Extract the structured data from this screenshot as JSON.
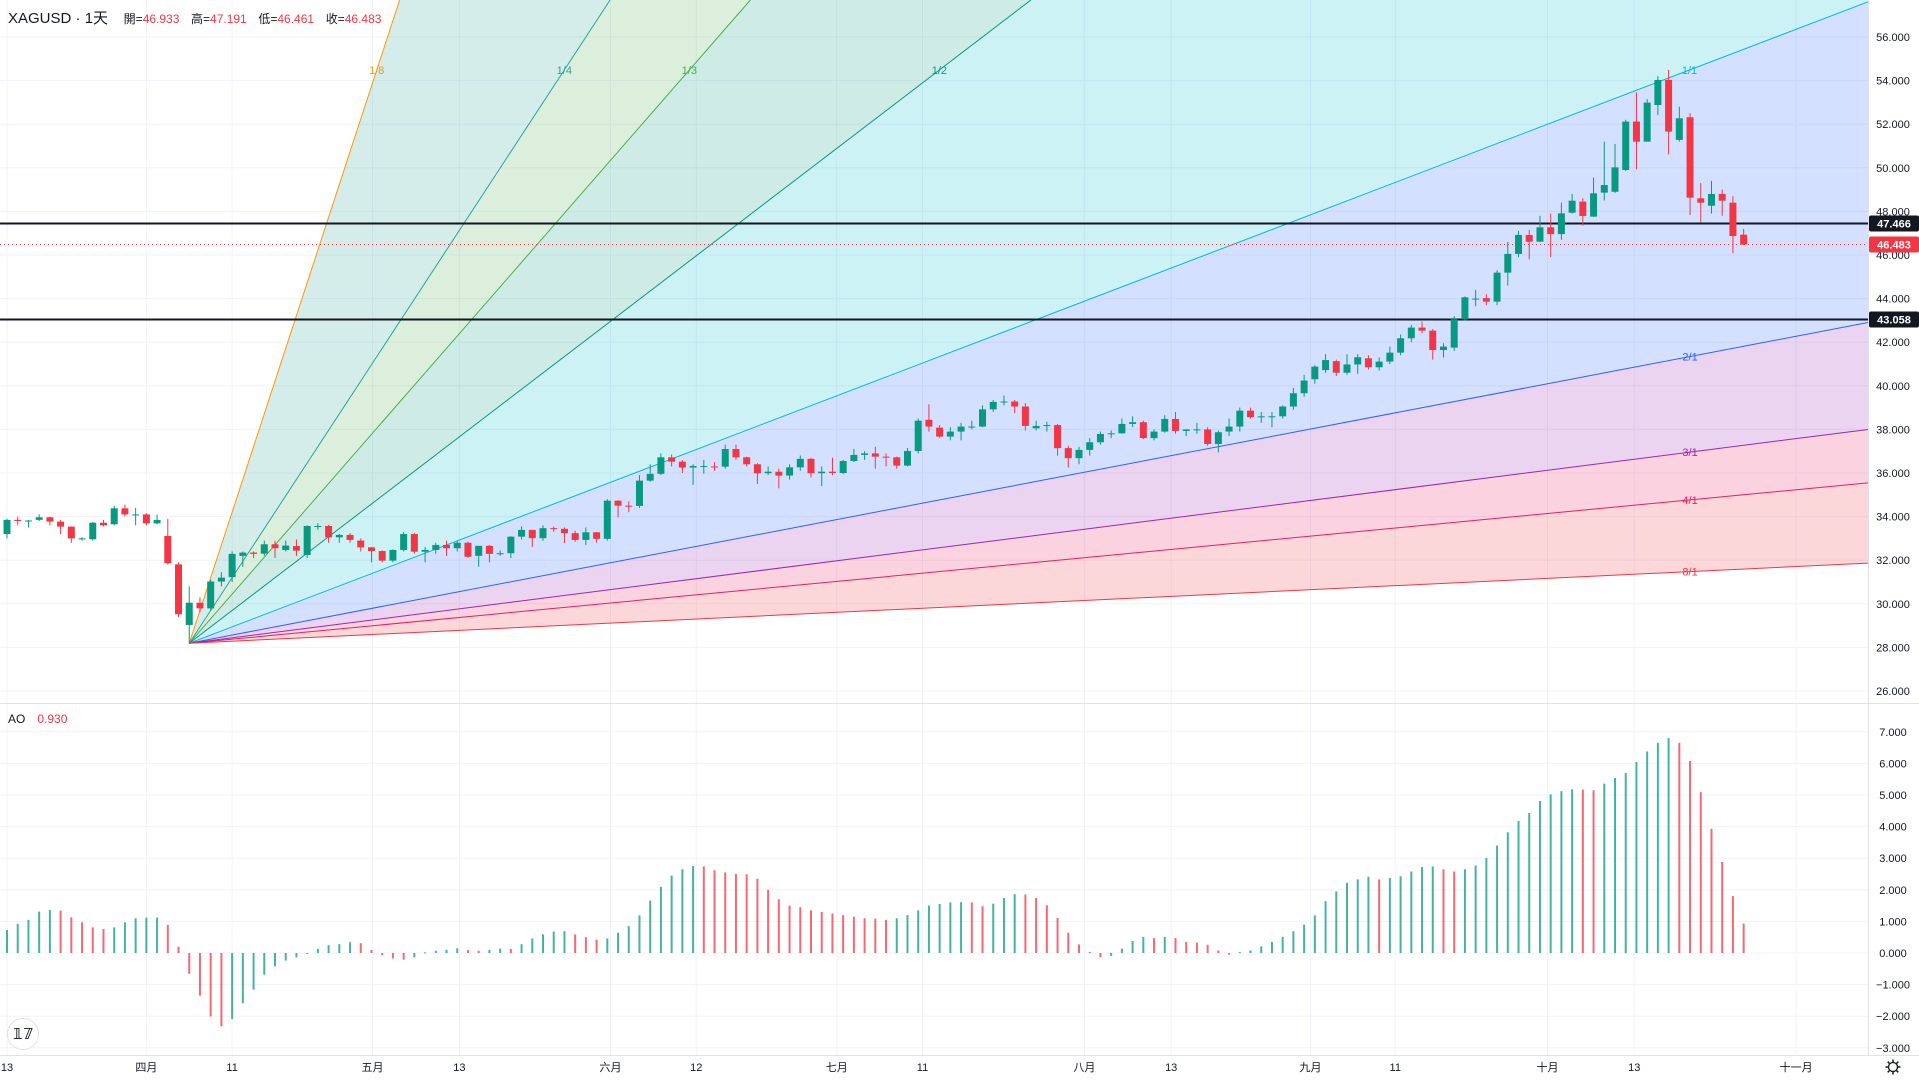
{
  "header": {
    "symbol": "XAGUSD",
    "sep": "·",
    "interval": "1天",
    "open_label": "開=",
    "open": "46.933",
    "high_label": "高=",
    "high": "47.191",
    "low_label": "低=",
    "low": "46.461",
    "close_label": "收=",
    "close": "46.483"
  },
  "indicator": {
    "name": "AO",
    "value": "0.930"
  },
  "logo_text": "TV",
  "colors": {
    "up": "#089981",
    "down": "#f23645",
    "hline": "#131722",
    "last_price": "#f23645",
    "grid": "#f0f3fa",
    "axis_text": "#131722"
  },
  "chart_data": {
    "type": "candlestick",
    "title": "XAGUSD · 1天",
    "price_axis": {
      "range": [
        26,
        56
      ],
      "ticks": [
        "56.000",
        "54.000",
        "52.000",
        "50.000",
        "48.000",
        "46.000",
        "44.000",
        "42.000",
        "40.000",
        "38.000",
        "36.000",
        "34.000",
        "32.000",
        "30.000",
        "28.000",
        "26.000"
      ]
    },
    "time_labels": [
      {
        "label": "13",
        "bar": 0
      },
      {
        "label": "四月",
        "bar": 13
      },
      {
        "label": "11",
        "bar": 21
      },
      {
        "label": "五月",
        "bar": 34.1
      },
      {
        "label": "13",
        "bar": 42.2
      },
      {
        "label": "六月",
        "bar": 56.3
      },
      {
        "label": "12",
        "bar": 64.3
      },
      {
        "label": "七月",
        "bar": 77.4
      },
      {
        "label": "11",
        "bar": 85.4
      },
      {
        "label": "八月",
        "bar": 100.5
      },
      {
        "label": "13",
        "bar": 108.6
      },
      {
        "label": "九月",
        "bar": 121.6
      },
      {
        "label": "11",
        "bar": 129.5
      },
      {
        "label": "十月",
        "bar": 143.7
      },
      {
        "label": "13",
        "bar": 151.8
      },
      {
        "label": "十一月",
        "bar": 166.9
      }
    ],
    "ohlc": [
      [
        33.2,
        33.9,
        33.0,
        33.85
      ],
      [
        33.85,
        34.0,
        33.6,
        33.8
      ],
      [
        33.8,
        33.85,
        33.5,
        33.82
      ],
      [
        33.85,
        34.1,
        33.8,
        33.97
      ],
      [
        33.97,
        34.0,
        33.6,
        33.77
      ],
      [
        33.77,
        33.85,
        33.2,
        33.54
      ],
      [
        33.54,
        33.55,
        32.8,
        33.0
      ],
      [
        33.0,
        33.05,
        32.9,
        33.0
      ],
      [
        32.96,
        33.75,
        32.9,
        33.72
      ],
      [
        33.72,
        33.85,
        33.55,
        33.6
      ],
      [
        33.65,
        34.5,
        33.6,
        34.38
      ],
      [
        34.38,
        34.55,
        34.0,
        34.1
      ],
      [
        34.1,
        34.4,
        33.6,
        34.1
      ],
      [
        34.1,
        34.15,
        33.6,
        33.69
      ],
      [
        33.69,
        34.1,
        33.65,
        33.85
      ],
      [
        33.11,
        33.9,
        31.8,
        31.86
      ],
      [
        31.81,
        31.9,
        29.4,
        29.52
      ],
      [
        29.03,
        30.8,
        28.19,
        30.05
      ],
      [
        30.05,
        30.3,
        29.6,
        29.79
      ],
      [
        29.79,
        31.1,
        29.7,
        31.02
      ],
      [
        31.02,
        31.45,
        30.8,
        31.2
      ],
      [
        31.22,
        32.4,
        31.0,
        32.29
      ],
      [
        32.2,
        32.4,
        31.7,
        32.35
      ],
      [
        32.35,
        32.4,
        32.1,
        32.29
      ],
      [
        32.3,
        32.9,
        32.2,
        32.73
      ],
      [
        32.73,
        32.9,
        32.1,
        32.55
      ],
      [
        32.47,
        32.9,
        32.4,
        32.67
      ],
      [
        32.65,
        32.95,
        32.2,
        32.44
      ],
      [
        32.24,
        33.6,
        32.1,
        33.57
      ],
      [
        33.57,
        33.7,
        33.4,
        33.57
      ],
      [
        33.57,
        33.62,
        32.8,
        33.05
      ],
      [
        33.05,
        33.2,
        32.8,
        33.16
      ],
      [
        33.16,
        33.25,
        32.8,
        32.93
      ],
      [
        32.9,
        33.0,
        32.4,
        32.59
      ],
      [
        32.59,
        32.6,
        31.9,
        32.42
      ],
      [
        32.42,
        32.45,
        31.9,
        31.98
      ],
      [
        31.98,
        32.5,
        31.9,
        32.47
      ],
      [
        32.47,
        33.3,
        32.4,
        33.2
      ],
      [
        33.2,
        33.25,
        32.3,
        32.39
      ],
      [
        32.39,
        32.6,
        31.9,
        32.47
      ],
      [
        32.47,
        32.8,
        32.3,
        32.7
      ],
      [
        32.7,
        32.9,
        32.2,
        32.55
      ],
      [
        32.55,
        32.9,
        32.4,
        32.8
      ],
      [
        32.8,
        32.85,
        32.1,
        32.16
      ],
      [
        32.2,
        32.5,
        31.7,
        32.66
      ],
      [
        32.66,
        32.7,
        31.9,
        32.29
      ],
      [
        32.3,
        32.45,
        32.2,
        32.32
      ],
      [
        32.32,
        33.1,
        32.1,
        33.08
      ],
      [
        33.08,
        33.55,
        32.95,
        33.39
      ],
      [
        33.39,
        33.4,
        32.6,
        33.01
      ],
      [
        33.01,
        33.6,
        32.9,
        33.47
      ],
      [
        33.47,
        33.55,
        33.3,
        33.44
      ],
      [
        33.44,
        33.5,
        32.78,
        33.24
      ],
      [
        33.24,
        33.35,
        32.85,
        32.93
      ],
      [
        32.93,
        33.5,
        32.7,
        33.28
      ],
      [
        33.28,
        33.3,
        32.8,
        32.98
      ],
      [
        32.98,
        34.8,
        32.9,
        34.73
      ],
      [
        34.73,
        34.75,
        33.97,
        34.5
      ],
      [
        34.5,
        34.7,
        34.2,
        34.49
      ],
      [
        34.49,
        35.9,
        34.4,
        35.65
      ],
      [
        35.65,
        36.4,
        35.6,
        35.96
      ],
      [
        35.96,
        36.9,
        35.9,
        36.72
      ],
      [
        36.72,
        36.85,
        36.3,
        36.52
      ],
      [
        36.52,
        36.6,
        36.0,
        36.25
      ],
      [
        36.25,
        36.4,
        35.45,
        36.32
      ],
      [
        36.32,
        36.6,
        35.97,
        36.32
      ],
      [
        36.3,
        36.5,
        36.1,
        36.29
      ],
      [
        36.29,
        37.3,
        36.2,
        37.1
      ],
      [
        37.1,
        37.3,
        36.6,
        36.72
      ],
      [
        36.72,
        36.75,
        36.3,
        36.4
      ],
      [
        36.4,
        36.45,
        35.5,
        35.99
      ],
      [
        35.99,
        36.3,
        35.9,
        36.06
      ],
      [
        36.06,
        36.2,
        35.3,
        35.88
      ],
      [
        35.88,
        36.4,
        35.7,
        36.26
      ],
      [
        36.26,
        36.8,
        36.1,
        36.65
      ],
      [
        36.65,
        36.7,
        35.8,
        35.99
      ],
      [
        35.99,
        36.3,
        35.4,
        36.06
      ],
      [
        36.06,
        36.7,
        35.9,
        36.0
      ],
      [
        36.0,
        36.6,
        35.95,
        36.55
      ],
      [
        36.55,
        37.1,
        36.5,
        36.83
      ],
      [
        36.83,
        37.0,
        36.6,
        36.9
      ],
      [
        36.9,
        37.2,
        36.2,
        36.75
      ],
      [
        36.75,
        36.9,
        36.3,
        36.72
      ],
      [
        36.72,
        36.75,
        36.2,
        36.34
      ],
      [
        36.34,
        37.15,
        36.3,
        37.01
      ],
      [
        37.01,
        38.5,
        36.9,
        38.4
      ],
      [
        38.44,
        39.15,
        37.9,
        38.13
      ],
      [
        38.08,
        38.2,
        37.6,
        37.67
      ],
      [
        37.67,
        38.1,
        37.5,
        37.9
      ],
      [
        37.9,
        38.3,
        37.5,
        38.13
      ],
      [
        38.13,
        38.4,
        38.0,
        38.13
      ],
      [
        38.13,
        39.1,
        38.1,
        38.92
      ],
      [
        38.92,
        39.35,
        38.8,
        39.26
      ],
      [
        39.26,
        39.55,
        39.1,
        39.28
      ],
      [
        39.28,
        39.35,
        38.75,
        39.05
      ],
      [
        39.05,
        39.2,
        37.95,
        38.16
      ],
      [
        38.05,
        38.4,
        37.95,
        38.16
      ],
      [
        38.16,
        38.35,
        37.9,
        38.2
      ],
      [
        38.2,
        38.25,
        36.8,
        37.14
      ],
      [
        37.14,
        37.25,
        36.25,
        36.68
      ],
      [
        36.68,
        37.2,
        36.4,
        37.06
      ],
      [
        37.06,
        37.6,
        36.8,
        37.41
      ],
      [
        37.41,
        37.9,
        37.3,
        37.79
      ],
      [
        37.79,
        37.95,
        37.6,
        37.82
      ],
      [
        37.82,
        38.5,
        37.8,
        38.25
      ],
      [
        38.25,
        38.6,
        38.1,
        38.33
      ],
      [
        38.33,
        38.4,
        37.55,
        37.6
      ],
      [
        37.6,
        38.0,
        37.5,
        37.9
      ],
      [
        37.9,
        38.65,
        37.85,
        38.48
      ],
      [
        38.48,
        38.8,
        37.8,
        37.93
      ],
      [
        37.93,
        38.0,
        37.7,
        38.0
      ],
      [
        38.0,
        38.3,
        37.8,
        38.0
      ],
      [
        38.0,
        38.1,
        37.25,
        37.33
      ],
      [
        37.33,
        37.95,
        36.95,
        37.87
      ],
      [
        37.9,
        38.5,
        37.7,
        38.13
      ],
      [
        38.13,
        39.0,
        37.9,
        38.86
      ],
      [
        38.86,
        39.0,
        38.5,
        38.56
      ],
      [
        38.56,
        38.8,
        38.3,
        38.6
      ],
      [
        38.6,
        38.8,
        38.1,
        38.6
      ],
      [
        38.6,
        39.1,
        38.5,
        39.05
      ],
      [
        39.05,
        39.9,
        38.9,
        39.66
      ],
      [
        39.66,
        40.5,
        39.5,
        40.24
      ],
      [
        40.3,
        40.95,
        40.1,
        40.88
      ],
      [
        40.72,
        41.45,
        40.6,
        41.18
      ],
      [
        41.13,
        41.2,
        40.45,
        40.6
      ],
      [
        40.6,
        41.45,
        40.5,
        40.98
      ],
      [
        40.98,
        41.45,
        40.55,
        41.31
      ],
      [
        41.26,
        41.4,
        40.75,
        40.85
      ],
      [
        40.85,
        41.3,
        40.7,
        41.11
      ],
      [
        41.11,
        41.8,
        41.0,
        41.52
      ],
      [
        41.52,
        42.35,
        41.4,
        42.18
      ],
      [
        42.18,
        42.8,
        42.0,
        42.67
      ],
      [
        42.67,
        42.95,
        42.4,
        42.53
      ],
      [
        42.53,
        42.6,
        41.2,
        41.64
      ],
      [
        41.64,
        41.95,
        41.3,
        41.8
      ],
      [
        41.75,
        43.2,
        41.6,
        43.05
      ],
      [
        43.05,
        44.1,
        43.0,
        44.06
      ],
      [
        44.0,
        44.4,
        43.65,
        44.0
      ],
      [
        44.02,
        44.2,
        43.7,
        43.86
      ],
      [
        43.86,
        45.3,
        43.7,
        45.19
      ],
      [
        45.19,
        46.6,
        44.6,
        46.05
      ],
      [
        46.05,
        47.1,
        45.9,
        46.92
      ],
      [
        46.92,
        47.15,
        45.8,
        46.61
      ],
      [
        46.61,
        47.8,
        46.6,
        47.27
      ],
      [
        47.27,
        47.9,
        45.9,
        46.96
      ],
      [
        46.96,
        48.4,
        46.7,
        47.91
      ],
      [
        47.94,
        48.8,
        47.9,
        48.49
      ],
      [
        48.45,
        48.6,
        47.35,
        47.79
      ],
      [
        47.76,
        49.55,
        47.75,
        48.83
      ],
      [
        48.86,
        51.2,
        48.5,
        49.21
      ],
      [
        48.9,
        51.1,
        48.85,
        50.02
      ],
      [
        49.9,
        52.2,
        49.85,
        52.12
      ],
      [
        52.12,
        53.46,
        49.93,
        51.2
      ],
      [
        51.2,
        53.15,
        51.2,
        52.99
      ],
      [
        52.88,
        54.2,
        52.42,
        54.03
      ],
      [
        54.03,
        54.49,
        50.62,
        51.66
      ],
      [
        51.28,
        52.8,
        51.2,
        52.27
      ],
      [
        52.32,
        52.5,
        47.83,
        48.63
      ],
      [
        48.6,
        49.3,
        47.5,
        48.4
      ],
      [
        48.26,
        49.4,
        47.9,
        48.8
      ],
      [
        48.8,
        49.0,
        47.8,
        48.49
      ],
      [
        48.4,
        48.7,
        46.08,
        46.87
      ],
      [
        46.933,
        47.191,
        46.461,
        46.483
      ]
    ],
    "horizontal_lines": [
      {
        "price": 47.466,
        "label": "47.466"
      },
      {
        "price": 43.058,
        "label": "43.058"
      }
    ],
    "last_price": {
      "price": 46.483,
      "label": "46.483"
    },
    "gann_fan": {
      "origin": {
        "bar": 17,
        "price": 28.19
      },
      "unit_slope_per_bar": 0.1879,
      "lines": [
        {
          "label": "1/8",
          "mult": 8,
          "color": "#ff9800"
        },
        {
          "label": "1/4",
          "mult": 4,
          "color": "#26a69a"
        },
        {
          "label": "1/3",
          "mult": 3,
          "color": "#4caf50"
        },
        {
          "label": "1/2",
          "mult": 2,
          "color": "#089981"
        },
        {
          "label": "1/1",
          "mult": 1,
          "color": "#00bcd4"
        },
        {
          "label": "2/1",
          "mult": 0.5,
          "color": "#2962ff"
        },
        {
          "label": "3/1",
          "mult": 0.3333,
          "color": "#9c27b0"
        },
        {
          "label": "4/1",
          "mult": 0.25,
          "color": "#e91e63"
        },
        {
          "label": "8/1",
          "mult": 0.125,
          "color": "#f23645"
        }
      ]
    },
    "ao": {
      "name": "AO",
      "range": [
        -3,
        7.4
      ],
      "ticks": [
        "7.000",
        "6.000",
        "5.000",
        "4.000",
        "3.000",
        "2.000",
        "1.000",
        "0.000",
        "−1.000",
        "−2.000",
        "−3.000"
      ],
      "values": [
        0.73,
        0.92,
        1.05,
        1.31,
        1.36,
        1.34,
        1.13,
        0.97,
        0.81,
        0.76,
        0.81,
        0.97,
        1.1,
        1.12,
        1.12,
        0.89,
        0.2,
        -0.66,
        -1.35,
        -2.01,
        -2.32,
        -2.09,
        -1.59,
        -1.16,
        -0.69,
        -0.42,
        -0.24,
        -0.14,
        -0.01,
        0.13,
        0.25,
        0.28,
        0.34,
        0.31,
        0.1,
        -0.07,
        -0.17,
        -0.21,
        -0.14,
        0.02,
        0.07,
        0.1,
        0.15,
        0.09,
        0.07,
        0.1,
        0.14,
        0.13,
        0.28,
        0.46,
        0.59,
        0.68,
        0.69,
        0.59,
        0.5,
        0.42,
        0.46,
        0.64,
        0.85,
        1.19,
        1.66,
        2.09,
        2.45,
        2.65,
        2.75,
        2.74,
        2.62,
        2.55,
        2.5,
        2.49,
        2.35,
        2.0,
        1.7,
        1.5,
        1.45,
        1.35,
        1.3,
        1.25,
        1.2,
        1.15,
        1.1,
        1.09,
        1.05,
        1.1,
        1.2,
        1.35,
        1.5,
        1.55,
        1.6,
        1.61,
        1.6,
        1.48,
        1.56,
        1.74,
        1.86,
        1.85,
        1.74,
        1.51,
        1.11,
        0.64,
        0.27,
        0.03,
        -0.13,
        -0.09,
        0.14,
        0.38,
        0.51,
        0.47,
        0.51,
        0.47,
        0.35,
        0.33,
        0.26,
        0.08,
        -0.05,
        0.03,
        0.08,
        0.21,
        0.35,
        0.51,
        0.69,
        0.9,
        1.19,
        1.64,
        1.95,
        2.22,
        2.33,
        2.41,
        2.33,
        2.37,
        2.43,
        2.58,
        2.72,
        2.74,
        2.65,
        2.58,
        2.65,
        2.77,
        3.01,
        3.4,
        3.82,
        4.18,
        4.43,
        4.81,
        5.02,
        5.12,
        5.18,
        5.17,
        5.15,
        5.36,
        5.54,
        5.7,
        6.04,
        6.38,
        6.65,
        6.8,
        6.65,
        6.08,
        5.09,
        3.93,
        2.88,
        1.8,
        0.93
      ]
    }
  }
}
